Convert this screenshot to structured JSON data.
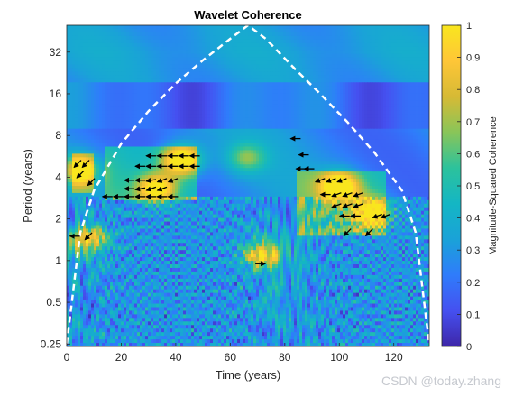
{
  "chart_data": {
    "type": "heatmap",
    "title": "Wavelet Coherence",
    "xlabel": "Time (years)",
    "ylabel": "Period (years)",
    "colorbar_label": "Magnitude-Squared Coherence",
    "xlim": [
      0,
      133
    ],
    "ylim": [
      0.24,
      50
    ],
    "yscale": "log2",
    "xticks": [
      0,
      20,
      40,
      60,
      80,
      100,
      120
    ],
    "xtick_labels": [
      "0",
      "20",
      "40",
      "60",
      "80",
      "100",
      "120"
    ],
    "yticks": [
      0.25,
      0.5,
      1,
      2,
      4,
      8,
      16,
      32
    ],
    "ytick_labels": [
      "0.25",
      "0.5",
      "1",
      "2",
      "4",
      "8",
      "16",
      "32"
    ],
    "clim": [
      0,
      1
    ],
    "cticks": [
      0,
      0.1,
      0.2,
      0.3,
      0.4,
      0.5,
      0.6,
      0.7,
      0.8,
      0.9,
      1
    ],
    "ctick_labels": [
      "0",
      "0.1",
      "0.2",
      "0.3",
      "0.4",
      "0.5",
      "0.6",
      "0.7",
      "0.8",
      "0.9",
      "1"
    ],
    "colormap": [
      "#3e26a8",
      "#4550f0",
      "#2f7cfb",
      "#1aa2d8",
      "#14b6c4",
      "#2cc29c",
      "#89c559",
      "#d6ba35",
      "#fec637",
      "#f9e61e"
    ],
    "cone_of_influence": {
      "style": "dashed",
      "color": "#ffffff",
      "x": [
        0,
        5,
        10,
        20,
        30,
        40,
        50,
        60,
        66.5,
        73,
        83,
        93,
        103,
        113,
        123,
        128,
        133
      ],
      "period": [
        0.25,
        1.6,
        3.2,
        7,
        12,
        19,
        28,
        40,
        50,
        40,
        25,
        16,
        10,
        6,
        3.2,
        1.6,
        0.25
      ]
    },
    "significant_regions": [
      {
        "x_range": [
          2,
          10
        ],
        "period_range": [
          3,
          6
        ]
      },
      {
        "x_range": [
          14,
          48
        ],
        "period_range": [
          2.8,
          6.8
        ]
      },
      {
        "x_range": [
          84,
          117
        ],
        "period_range": [
          1.5,
          4.5
        ]
      }
    ],
    "hot_spots": [
      {
        "x": 42,
        "period": 5.3,
        "value": 0.92
      },
      {
        "x": 33,
        "period": 3.3,
        "value": 0.85
      },
      {
        "x": 100,
        "period": 3.4,
        "value": 0.88
      },
      {
        "x": 112,
        "period": 2.2,
        "value": 0.8
      },
      {
        "x": 5,
        "period": 4.5,
        "value": 0.8
      },
      {
        "x": 8,
        "period": 1.4,
        "value": 0.8
      },
      {
        "x": 66,
        "period": 5.5,
        "value": 0.55
      },
      {
        "x": 72,
        "period": 1.1,
        "value": 0.85
      }
    ],
    "phase_arrows": [
      {
        "x": 4,
        "period": 5.0,
        "angle": 225
      },
      {
        "x": 7,
        "period": 5.0,
        "angle": 225
      },
      {
        "x": 5,
        "period": 4.2,
        "angle": 225
      },
      {
        "x": 9,
        "period": 3.7,
        "angle": 225
      },
      {
        "x": 3,
        "period": 1.5,
        "angle": 180
      },
      {
        "x": 8,
        "period": 1.5,
        "angle": 225
      },
      {
        "x": 31,
        "period": 5.7,
        "angle": 180
      },
      {
        "x": 35,
        "period": 5.7,
        "angle": 180
      },
      {
        "x": 39,
        "period": 5.7,
        "angle": 180
      },
      {
        "x": 43,
        "period": 5.7,
        "angle": 180
      },
      {
        "x": 47,
        "period": 5.7,
        "angle": 180
      },
      {
        "x": 27,
        "period": 4.8,
        "angle": 180
      },
      {
        "x": 31,
        "period": 4.8,
        "angle": 180
      },
      {
        "x": 35,
        "period": 4.8,
        "angle": 180
      },
      {
        "x": 39,
        "period": 4.8,
        "angle": 180
      },
      {
        "x": 43,
        "period": 4.8,
        "angle": 180
      },
      {
        "x": 47,
        "period": 4.8,
        "angle": 180
      },
      {
        "x": 23,
        "period": 3.8,
        "angle": 180
      },
      {
        "x": 27,
        "period": 3.8,
        "angle": 180
      },
      {
        "x": 31,
        "period": 3.8,
        "angle": 190
      },
      {
        "x": 35,
        "period": 3.8,
        "angle": 200
      },
      {
        "x": 39,
        "period": 3.8,
        "angle": 200
      },
      {
        "x": 23,
        "period": 3.3,
        "angle": 180
      },
      {
        "x": 27,
        "period": 3.3,
        "angle": 190
      },
      {
        "x": 31,
        "period": 3.3,
        "angle": 200
      },
      {
        "x": 35,
        "period": 3.3,
        "angle": 200
      },
      {
        "x": 15,
        "period": 2.9,
        "angle": 180
      },
      {
        "x": 19,
        "period": 2.9,
        "angle": 180
      },
      {
        "x": 23,
        "period": 2.9,
        "angle": 180
      },
      {
        "x": 27,
        "period": 2.9,
        "angle": 180
      },
      {
        "x": 31,
        "period": 2.9,
        "angle": 180
      },
      {
        "x": 35,
        "period": 2.9,
        "angle": 180
      },
      {
        "x": 39,
        "period": 2.9,
        "angle": 180
      },
      {
        "x": 84,
        "period": 7.6,
        "angle": 180
      },
      {
        "x": 87,
        "period": 5.8,
        "angle": 180
      },
      {
        "x": 86,
        "period": 4.6,
        "angle": 180
      },
      {
        "x": 89,
        "period": 4.6,
        "angle": 180
      },
      {
        "x": 93,
        "period": 3.8,
        "angle": 200
      },
      {
        "x": 97,
        "period": 3.8,
        "angle": 200
      },
      {
        "x": 101,
        "period": 3.8,
        "angle": 200
      },
      {
        "x": 95,
        "period": 3.0,
        "angle": 180
      },
      {
        "x": 99,
        "period": 3.0,
        "angle": 200
      },
      {
        "x": 103,
        "period": 3.0,
        "angle": 200
      },
      {
        "x": 107,
        "period": 3.0,
        "angle": 200
      },
      {
        "x": 99,
        "period": 2.5,
        "angle": 200
      },
      {
        "x": 103,
        "period": 2.5,
        "angle": 200
      },
      {
        "x": 107,
        "period": 2.5,
        "angle": 200
      },
      {
        "x": 102,
        "period": 2.1,
        "angle": 180
      },
      {
        "x": 106,
        "period": 2.1,
        "angle": 180
      },
      {
        "x": 114,
        "period": 2.1,
        "angle": 200
      },
      {
        "x": 117,
        "period": 2.1,
        "angle": 200
      },
      {
        "x": 103,
        "period": 1.6,
        "angle": 225
      },
      {
        "x": 111,
        "period": 1.6,
        "angle": 225
      },
      {
        "x": 71,
        "period": 0.95,
        "angle": 0
      }
    ]
  },
  "watermark": "CSDN @today.zhang"
}
